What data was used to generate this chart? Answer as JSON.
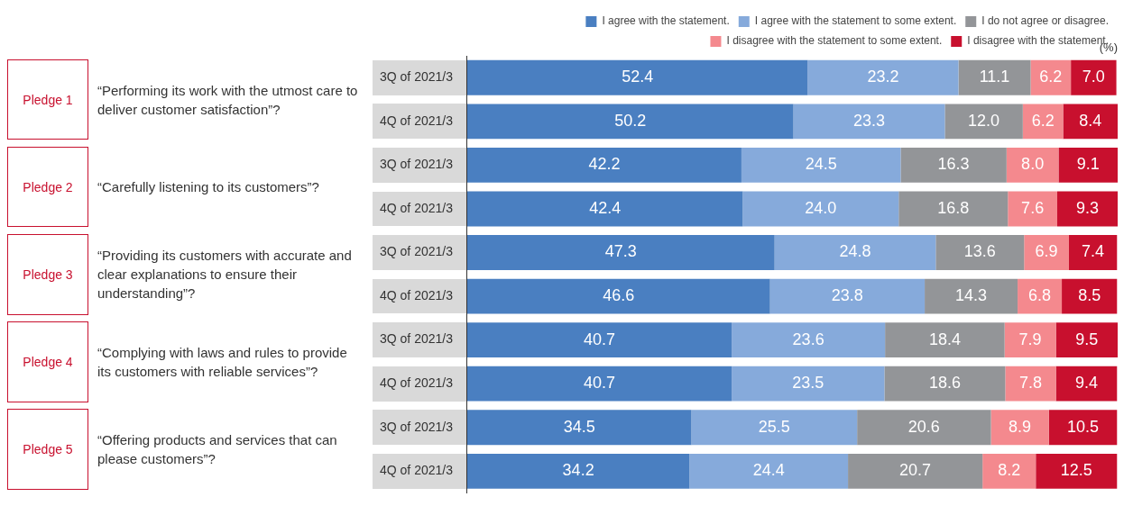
{
  "chart_data": {
    "type": "bar",
    "orientation": "horizontal",
    "stacked": true,
    "legend": "top right",
    "xlabel": "(%)",
    "categories": [
      "3Q of 2021/3",
      "4Q of 2021/3",
      "3Q of 2021/3",
      "4Q of 2021/3",
      "3Q of 2021/3",
      "4Q of 2021/3",
      "3Q of 2021/3",
      "4Q of 2021/3",
      "3Q of 2021/3",
      "4Q of 2021/3"
    ],
    "series": [
      {
        "name": "I agree with the statement.",
        "color": "#4a7fc1",
        "values": [
          52.4,
          50.2,
          42.2,
          42.4,
          47.3,
          46.6,
          40.7,
          40.7,
          34.5,
          34.2
        ],
        "value_labels": [
          "52.4",
          "50.2",
          "42.2",
          "42.4",
          "47.3",
          "46.6",
          "40.7",
          "40.7",
          "34.5",
          "34.2"
        ]
      },
      {
        "name": "I agree with the statement to some extent.",
        "color": "#86aadb",
        "values": [
          23.2,
          23.3,
          24.5,
          24.0,
          24.8,
          23.8,
          23.6,
          23.5,
          25.5,
          24.4
        ],
        "value_labels": [
          "23.2",
          "23.3",
          "24.5",
          "24.0",
          "24.8",
          "23.8",
          "23.6",
          "23.5",
          "25.5",
          "24.4"
        ]
      },
      {
        "name": "I do not agree or disagree.",
        "color": "#939598",
        "values": [
          11.1,
          12.0,
          16.3,
          16.8,
          13.6,
          14.3,
          18.4,
          18.6,
          20.6,
          20.7
        ],
        "value_labels": [
          "11.1",
          "12.0",
          "16.3",
          "16.8",
          "13.6",
          "14.3",
          "18.4",
          "18.6",
          "20.6",
          "20.7"
        ]
      },
      {
        "name": "I disagree with the statement to some extent.",
        "color": "#f4898e",
        "values": [
          6.2,
          6.2,
          8.0,
          7.6,
          6.9,
          6.8,
          7.9,
          7.8,
          8.9,
          8.2
        ],
        "value_labels": [
          "6.2",
          "6.2",
          "8.0",
          "7.6",
          "6.9",
          "6.8",
          "7.9",
          "7.8",
          "8.9",
          "8.2"
        ]
      },
      {
        "name": "I disagree with the statement.",
        "color": "#c8102e",
        "values": [
          7.0,
          8.4,
          9.1,
          9.3,
          7.4,
          8.5,
          9.5,
          9.4,
          10.5,
          12.5
        ],
        "value_labels": [
          "7.0",
          "8.4",
          "9.1",
          "9.3",
          "7.4",
          "8.5",
          "9.5",
          "9.4",
          "10.5",
          "12.5"
        ]
      }
    ],
    "annotations": [
      "Pledge 1",
      "“Performing its work with the utmost care to deliver customer satisfaction”?",
      "Pledge 2",
      "“Carefully listening to its customers”?",
      "Pledge 3",
      "“Providing its customers with accurate and clear explanations to ensure their understanding”?",
      "Pledge 4",
      "“Complying with laws and rules to provide its customers with reliable services”?",
      "Pledge 5",
      "“Offering products and services that can please customers”?"
    ]
  }
}
